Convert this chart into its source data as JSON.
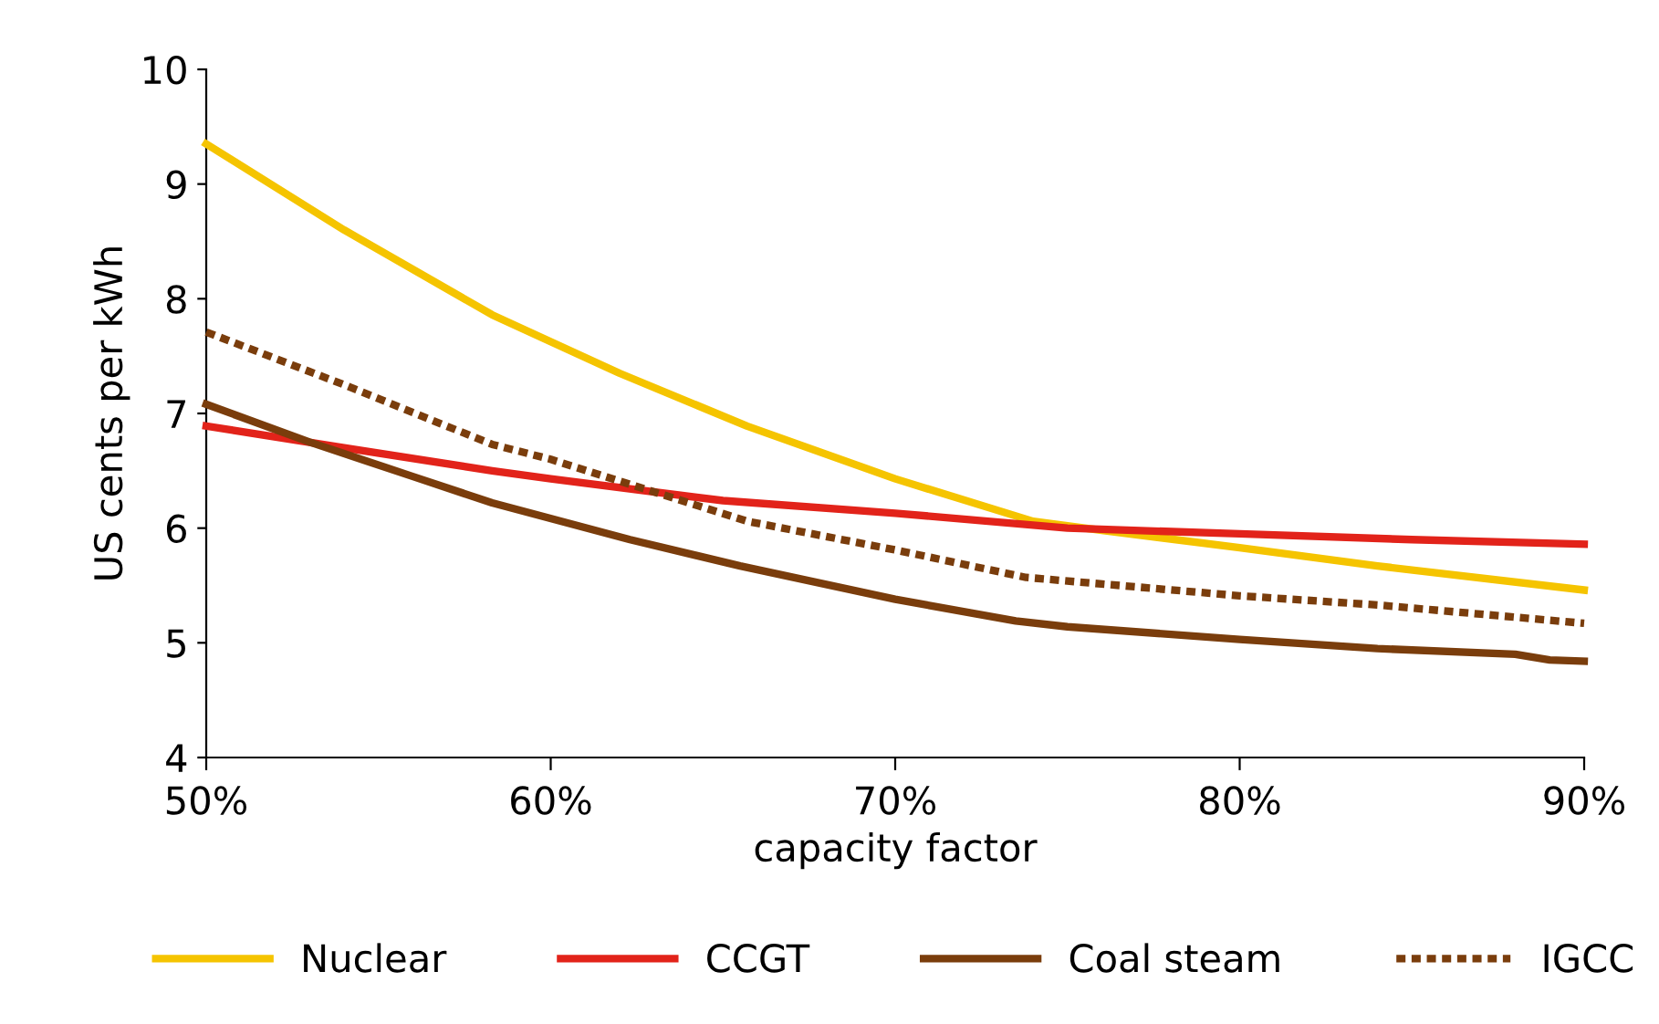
{
  "chart_data": {
    "type": "line",
    "xlabel": "capacity factor",
    "ylabel": "US cents per kWh",
    "xlim": [
      50,
      90
    ],
    "ylim": [
      4,
      10
    ],
    "xticks": [
      {
        "value": 50,
        "label": "50%"
      },
      {
        "value": 60,
        "label": "60%"
      },
      {
        "value": 70,
        "label": "70%"
      },
      {
        "value": 80,
        "label": "80%"
      },
      {
        "value": 90,
        "label": "90%"
      }
    ],
    "yticks": [
      4,
      5,
      6,
      7,
      8,
      9,
      10
    ],
    "grid": false,
    "legend": "bottom",
    "marker": "none",
    "series": [
      {
        "name": "Nuclear",
        "color": "#f5c400",
        "line_style": "solid",
        "x": [
          50,
          54,
          58.3,
          62,
          65.7,
          70,
          74,
          76,
          80,
          84,
          90
        ],
        "values": [
          9.35,
          8.6,
          7.86,
          7.35,
          6.89,
          6.43,
          6.06,
          5.98,
          5.83,
          5.67,
          5.46
        ]
      },
      {
        "name": "CCGT",
        "color": "#e2231a",
        "line_style": "solid",
        "x": [
          50,
          54,
          58.3,
          60,
          65,
          70,
          75,
          80,
          85,
          90
        ],
        "values": [
          6.89,
          6.7,
          6.5,
          6.43,
          6.24,
          6.13,
          6.0,
          5.95,
          5.9,
          5.86
        ]
      },
      {
        "name": "Coal steam",
        "color": "#7a3d0c",
        "line_style": "solid",
        "x": [
          50,
          53,
          56,
          58.3,
          62.3,
          65.5,
          70,
          73.5,
          75,
          80,
          84,
          88,
          89,
          90
        ],
        "values": [
          7.08,
          6.75,
          6.45,
          6.22,
          5.9,
          5.67,
          5.38,
          5.19,
          5.14,
          5.03,
          4.95,
          4.9,
          4.85,
          4.84
        ]
      },
      {
        "name": "IGCC",
        "color": "#7a3d0c",
        "line_style": "dotted",
        "x": [
          50,
          54,
          58.3,
          60,
          65.7,
          70,
          73.8,
          80,
          84,
          90
        ],
        "values": [
          7.71,
          7.25,
          6.73,
          6.6,
          6.06,
          5.81,
          5.57,
          5.41,
          5.33,
          5.17
        ]
      }
    ]
  }
}
